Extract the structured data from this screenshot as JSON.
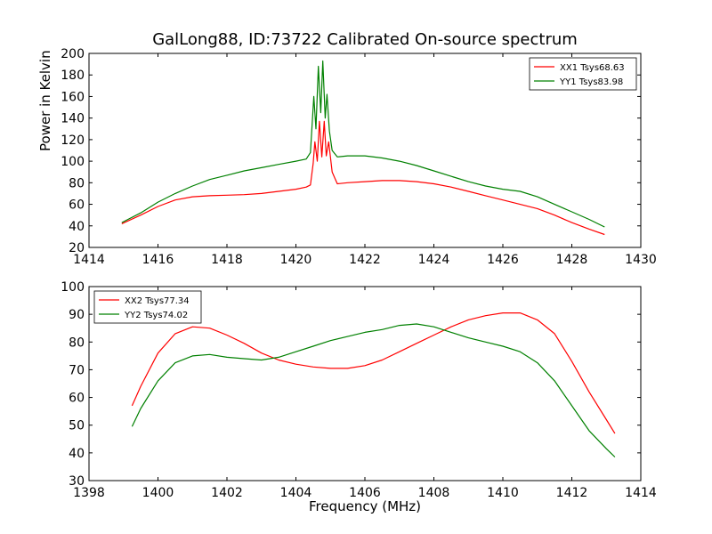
{
  "title": "GalLong88, ID:73722 Calibrated On-source spectrum",
  "ylabel": "Power in Kelvin",
  "xlabel": "Frequency (MHz)",
  "colors": {
    "red": "#ff0000",
    "green": "#008000"
  },
  "chart_data": [
    {
      "type": "line",
      "xlim": [
        1414,
        1430
      ],
      "ylim": [
        20,
        200
      ],
      "xticks": [
        1414,
        1416,
        1418,
        1420,
        1422,
        1424,
        1426,
        1428,
        1430
      ],
      "yticks": [
        20,
        40,
        60,
        80,
        100,
        120,
        140,
        160,
        180,
        200
      ],
      "legend": "top-right",
      "series": [
        {
          "name": "XX1 Tsys68.63",
          "color": "#ff0000",
          "x": [
            1414.95,
            1415.5,
            1416,
            1416.5,
            1417,
            1417.5,
            1418,
            1418.5,
            1419,
            1419.5,
            1420,
            1420.3,
            1420.42,
            1420.5,
            1420.55,
            1420.62,
            1420.68,
            1420.75,
            1420.82,
            1420.88,
            1420.95,
            1421.05,
            1421.2,
            1421.5,
            1422,
            1422.5,
            1423,
            1423.5,
            1424,
            1424.5,
            1425,
            1425.5,
            1426,
            1426.5,
            1427,
            1427.5,
            1428,
            1428.5,
            1428.95
          ],
          "y": [
            42,
            50,
            58,
            64,
            67,
            68,
            68.5,
            69,
            70,
            72,
            74,
            76,
            78,
            98,
            118,
            100,
            137,
            104,
            137,
            105,
            118,
            90,
            79,
            80,
            81,
            82,
            82,
            81,
            79,
            76,
            72,
            68,
            64,
            60,
            56,
            50,
            43,
            37,
            32
          ]
        },
        {
          "name": "YY1 Tsys83.98",
          "color": "#008000",
          "x": [
            1414.95,
            1415.5,
            1416,
            1416.5,
            1417,
            1417.5,
            1418,
            1418.5,
            1419,
            1419.5,
            1420,
            1420.3,
            1420.42,
            1420.52,
            1420.58,
            1420.65,
            1420.72,
            1420.78,
            1420.85,
            1420.9,
            1420.97,
            1421.05,
            1421.2,
            1421.5,
            1422,
            1422.5,
            1423,
            1423.5,
            1424,
            1424.5,
            1425,
            1425.5,
            1426,
            1426.5,
            1427,
            1427.5,
            1428,
            1428.5,
            1428.95
          ],
          "y": [
            43,
            52,
            62,
            70,
            77,
            83,
            87,
            91,
            94,
            97,
            100,
            102,
            108,
            160,
            130,
            188,
            145,
            193,
            140,
            162,
            128,
            110,
            104,
            105,
            105,
            103,
            100,
            96,
            91,
            86,
            81,
            77,
            74,
            72,
            67,
            60,
            53,
            46,
            39
          ]
        }
      ]
    },
    {
      "type": "line",
      "xlim": [
        1398,
        1414
      ],
      "ylim": [
        30,
        100
      ],
      "xticks": [
        1398,
        1400,
        1402,
        1404,
        1406,
        1408,
        1410,
        1412,
        1414
      ],
      "yticks": [
        30,
        40,
        50,
        60,
        70,
        80,
        90,
        100
      ],
      "xlabel": "Frequency (MHz)",
      "legend": "top-left",
      "series": [
        {
          "name": "XX2 Tsys77.34",
          "color": "#ff0000",
          "x": [
            1399.25,
            1399.5,
            1400,
            1400.5,
            1401,
            1401.5,
            1402,
            1402.5,
            1403,
            1403.5,
            1404,
            1404.5,
            1405,
            1405.5,
            1406,
            1406.5,
            1407,
            1407.5,
            1408,
            1408.5,
            1409,
            1409.5,
            1410,
            1410.5,
            1411,
            1411.5,
            1412,
            1412.5,
            1413,
            1413.25
          ],
          "y": [
            57,
            64,
            76,
            83,
            85.5,
            85,
            82.5,
            79.5,
            76,
            73.5,
            72,
            71,
            70.5,
            70.5,
            71.5,
            73.5,
            76.5,
            79.5,
            82.5,
            85.5,
            88,
            89.5,
            90.5,
            90.5,
            88,
            83,
            73,
            62,
            52,
            47
          ]
        },
        {
          "name": "YY2 Tsys74.02",
          "color": "#008000",
          "x": [
            1399.25,
            1399.5,
            1400,
            1400.5,
            1401,
            1401.5,
            1402,
            1402.5,
            1403,
            1403.5,
            1404,
            1404.5,
            1405,
            1405.5,
            1406,
            1406.5,
            1407,
            1407.5,
            1408,
            1408.5,
            1409,
            1409.5,
            1410,
            1410.5,
            1411,
            1411.5,
            1412,
            1412.5,
            1413,
            1413.25
          ],
          "y": [
            49.5,
            56,
            66,
            72.5,
            75,
            75.5,
            74.5,
            74,
            73.5,
            74.5,
            76.5,
            78.5,
            80.5,
            82,
            83.5,
            84.5,
            86,
            86.5,
            85.5,
            83.5,
            81.5,
            80,
            78.5,
            76.5,
            72.5,
            66,
            57,
            48,
            41.5,
            38.5
          ]
        }
      ]
    }
  ]
}
